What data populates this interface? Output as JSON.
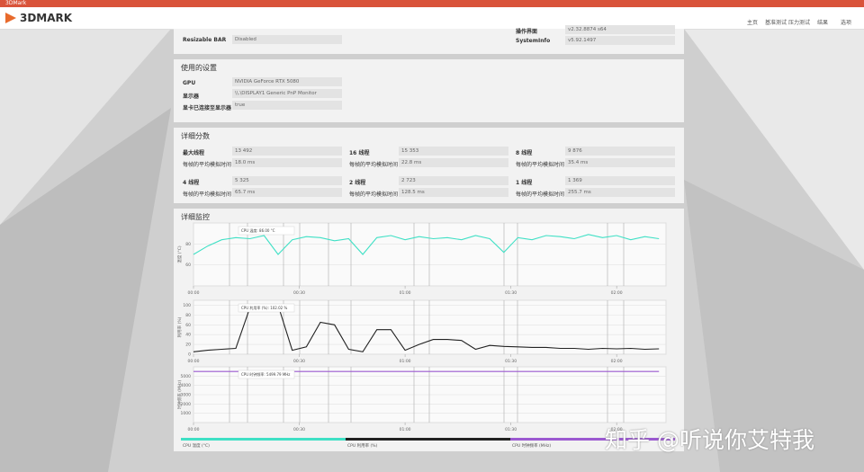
{
  "titlebar": "3DMark",
  "header": {
    "logo": "3DMARK",
    "nav": [
      "主页",
      "基准测试",
      "压力测试",
      "结果",
      "选项"
    ]
  },
  "top_section": {
    "left": [
      {
        "label": "Resizable BAR",
        "value": "Disabled"
      }
    ],
    "right": [
      {
        "label": "操作界面",
        "value": "v2.32.8874 s64"
      },
      {
        "label": "SystemInfo",
        "value": "v5.92.1497"
      }
    ]
  },
  "settings": {
    "title": "使用的设置",
    "rows": [
      {
        "label": "GPU",
        "value": "NVIDIA GeForce RTX 5080"
      },
      {
        "label": "显示器",
        "value": "\\\\.\\DISPLAY1 Generic PnP Monitor"
      },
      {
        "label": "显卡已连接至显示器",
        "value": "true"
      }
    ]
  },
  "scores": {
    "title": "详细分数",
    "groups": [
      {
        "label": "最大线程",
        "score": "13 492",
        "time_label": "每帧的平均模拟时间",
        "time": "18.0 ms"
      },
      {
        "label": "16 线程",
        "score": "15 353",
        "time_label": "每帧的平均模拟时间",
        "time": "22.8 ms"
      },
      {
        "label": "8 线程",
        "score": "9 876",
        "time_label": "每帧的平均模拟时间",
        "time": "35.4 ms"
      },
      {
        "label": "4 线程",
        "score": "5 325",
        "time_label": "每帧的平均模拟时间",
        "time": "65.7 ms"
      },
      {
        "label": "2 线程",
        "score": "2 723",
        "time_label": "每帧的平均模拟时间",
        "time": "128.5 ms"
      },
      {
        "label": "1 线程",
        "score": "1 369",
        "time_label": "每帧的平均模拟时间",
        "time": "255.7 ms"
      }
    ]
  },
  "monitor": {
    "title": "详细监控"
  },
  "chart_data": [
    {
      "type": "line",
      "ylabel": "温度 (°C)",
      "annotation": "CPU 温度: 86.00 °C",
      "x": [
        0,
        4,
        8,
        12,
        16,
        20,
        24,
        28,
        32,
        36,
        40,
        44,
        48,
        52,
        56,
        60,
        64,
        68,
        72,
        76,
        80,
        84,
        88,
        92,
        96,
        100,
        104,
        108,
        112,
        116,
        120,
        124,
        128,
        132
      ],
      "xlim": [
        0,
        134
      ],
      "xticks": [
        {
          "value": 0,
          "label": "00:00"
        },
        {
          "value": 30,
          "label": "00:30"
        },
        {
          "value": 60,
          "label": "01:00"
        },
        {
          "value": 90,
          "label": "01:30"
        },
        {
          "value": 120,
          "label": "02:00"
        }
      ],
      "ylim": [
        40,
        100
      ],
      "yticks": [
        60,
        80
      ],
      "series": [
        {
          "name": "CPU 温度 (°C)",
          "color": "#3fe0c5",
          "values": [
            70,
            78,
            84,
            86,
            85,
            88,
            70,
            84,
            87,
            86,
            83,
            85,
            70,
            86,
            88,
            84,
            87,
            85,
            86,
            84,
            88,
            85,
            72,
            86,
            84,
            88,
            87,
            85,
            89,
            86,
            88,
            84,
            87,
            85
          ]
        }
      ]
    },
    {
      "type": "line",
      "ylabel": "利用率 (%)",
      "annotation": "CPU 利用率 (%): 102.02 %",
      "x": [
        0,
        4,
        8,
        12,
        16,
        20,
        24,
        28,
        32,
        36,
        40,
        44,
        48,
        52,
        56,
        60,
        64,
        68,
        72,
        76,
        80,
        84,
        88,
        92,
        96,
        100,
        104,
        108,
        112,
        116,
        120,
        124,
        128,
        132
      ],
      "xlim": [
        0,
        134
      ],
      "xticks": [
        {
          "value": 0,
          "label": "00:00"
        },
        {
          "value": 30,
          "label": "00:30"
        },
        {
          "value": 60,
          "label": "01:00"
        },
        {
          "value": 90,
          "label": "01:30"
        },
        {
          "value": 120,
          "label": "02:00"
        }
      ],
      "ylim": [
        0,
        110
      ],
      "yticks": [
        0,
        20,
        40,
        60,
        80,
        100
      ],
      "series": [
        {
          "name": "CPU 利用率 (%)",
          "color": "#222222",
          "values": [
            5,
            8,
            10,
            12,
            95,
            100,
            100,
            8,
            15,
            65,
            60,
            10,
            5,
            50,
            50,
            8,
            20,
            30,
            30,
            28,
            10,
            18,
            16,
            15,
            14,
            14,
            12,
            12,
            10,
            12,
            11,
            12,
            10,
            11
          ]
        }
      ]
    },
    {
      "type": "line",
      "ylabel": "时钟频率 (MHz)",
      "annotation": "CPU 时钟频率: 5499.79 MHz",
      "x": [
        0,
        4,
        8,
        12,
        16,
        20,
        24,
        28,
        32,
        36,
        40,
        44,
        48,
        52,
        56,
        60,
        64,
        68,
        72,
        76,
        80,
        84,
        88,
        92,
        96,
        100,
        104,
        108,
        112,
        116,
        120,
        124,
        128,
        132
      ],
      "xlim": [
        0,
        134
      ],
      "xticks": [
        {
          "value": 0,
          "label": "00:00"
        },
        {
          "value": 30,
          "label": "00:30"
        },
        {
          "value": 60,
          "label": "01:00"
        },
        {
          "value": 90,
          "label": "01:30"
        },
        {
          "value": 120,
          "label": "02:00"
        }
      ],
      "ylim": [
        0,
        6000
      ],
      "yticks": [
        1000,
        2000,
        3000,
        4000,
        5000
      ],
      "series": [
        {
          "name": "CPU 时钟频率 (MHz)",
          "color": "#9b59d0",
          "values": [
            5500,
            5500,
            5500,
            5500,
            5500,
            5500,
            5500,
            5500,
            5500,
            5500,
            5500,
            5500,
            5500,
            5500,
            5500,
            5500,
            5500,
            5500,
            5500,
            5500,
            5500,
            5500,
            5500,
            5500,
            5500,
            5500,
            5500,
            5500,
            5500,
            5500,
            5500,
            5500,
            5500,
            5500
          ]
        }
      ]
    }
  ],
  "watermark": "知乎 @听说你艾特我"
}
